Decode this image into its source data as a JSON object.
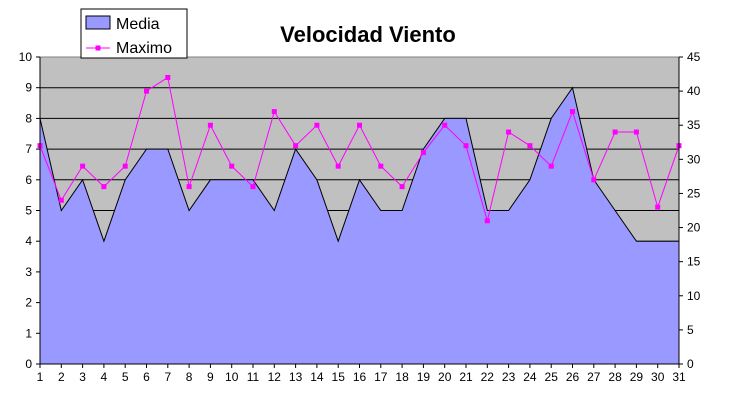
{
  "chart_data": {
    "type": "area",
    "title": "Velocidad Viento",
    "xlabel": "",
    "ylabel": "",
    "x": [
      1,
      2,
      3,
      4,
      5,
      6,
      7,
      8,
      9,
      10,
      11,
      12,
      13,
      14,
      15,
      16,
      17,
      18,
      19,
      20,
      21,
      22,
      23,
      24,
      25,
      26,
      27,
      28,
      29,
      30,
      31
    ],
    "y_left_lim": [
      0,
      10
    ],
    "y_left_ticks": [
      0,
      1,
      2,
      3,
      4,
      5,
      6,
      7,
      8,
      9,
      10
    ],
    "y_right_lim": [
      0,
      45
    ],
    "y_right_ticks": [
      0,
      5,
      10,
      15,
      20,
      25,
      30,
      35,
      40,
      45
    ],
    "grid": true,
    "legend_position": "top-left",
    "series": [
      {
        "name": "Media",
        "type": "area",
        "axis": "left",
        "color": "#9999ff",
        "values": [
          8,
          5,
          6,
          4,
          6,
          7,
          7,
          5,
          6,
          6,
          6,
          5,
          7,
          6,
          4,
          6,
          5,
          5,
          7,
          8,
          8,
          5,
          5,
          6,
          8,
          9,
          6,
          5,
          4,
          4,
          4
        ]
      },
      {
        "name": "Maximo",
        "type": "line",
        "axis": "right",
        "color": "#ff00ff",
        "values": [
          32,
          24,
          29,
          26,
          29,
          40,
          42,
          26,
          35,
          29,
          26,
          37,
          32,
          35,
          29,
          35,
          29,
          26,
          31,
          35,
          32,
          21,
          34,
          32,
          29,
          37,
          27,
          34,
          34,
          23,
          32
        ]
      }
    ],
    "colors": {
      "plot_background": "#c0c0c0",
      "area_fill": "#9999ff",
      "line": "#ff00ff",
      "grid": "#000000"
    }
  }
}
